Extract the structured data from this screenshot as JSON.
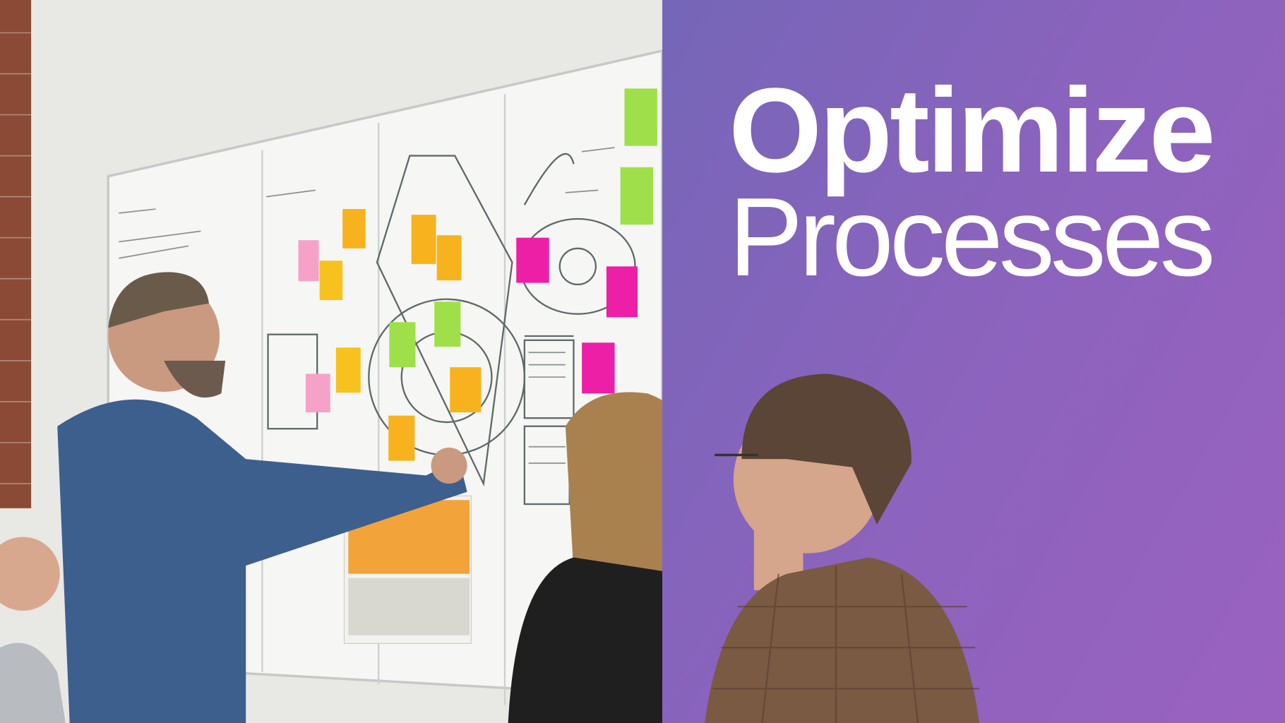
{
  "headline": {
    "line1": "Optimize",
    "line2": "Processes"
  },
  "colors": {
    "panel_start": "#7566b8",
    "panel_end": "#9a62c0",
    "headline_text": "#ffffff",
    "sticky_orange": "#f7b21e",
    "sticky_pink": "#f6a2c8",
    "sticky_magenta": "#ec1fa6",
    "sticky_green": "#9fe04a"
  }
}
